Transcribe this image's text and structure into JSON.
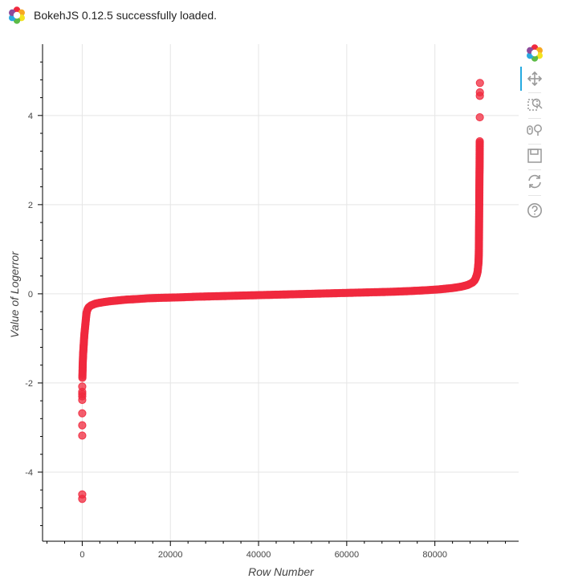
{
  "banner": {
    "message": "BokehJS 0.12.5 successfully loaded.",
    "logo_icon": "bokeh-logo-icon"
  },
  "toolbar": {
    "tools": [
      {
        "name": "bokeh-logo-icon",
        "active": false
      },
      {
        "name": "pan-icon",
        "active": true
      },
      {
        "name": "box-zoom-icon",
        "active": false
      },
      {
        "name": "wheel-zoom-icon",
        "active": false
      },
      {
        "name": "save-icon",
        "active": false
      },
      {
        "name": "reset-icon",
        "active": false
      },
      {
        "name": "help-icon",
        "active": false
      }
    ]
  },
  "chart_data": {
    "type": "scatter",
    "title": "",
    "xlabel": "Row Number",
    "ylabel": "Value of Logerror",
    "xlim": [
      -9000,
      99000
    ],
    "ylim": [
      -5.55,
      5.6
    ],
    "x_ticks": [
      0,
      20000,
      40000,
      60000,
      80000
    ],
    "x_tick_labels": [
      "0",
      "20000",
      "40000",
      "60000",
      "80000"
    ],
    "y_ticks": [
      -4,
      -2,
      0,
      2,
      4
    ],
    "y_tick_labels": [
      "-4",
      "-2",
      "0",
      "2",
      "4"
    ],
    "grid": true,
    "marker_color": "#f0293e",
    "description_of_series": "sorted logerror values, indexed by row number",
    "points": [
      [
        0,
        -4.6
      ],
      [
        0,
        -4.5
      ],
      [
        0,
        -3.18
      ],
      [
        0,
        -2.95
      ],
      [
        0,
        -2.68
      ],
      [
        0,
        -2.38
      ],
      [
        0,
        -2.3
      ],
      [
        0,
        -2.25
      ],
      [
        0,
        -2.2
      ],
      [
        0,
        -2.08
      ],
      [
        50,
        -1.82
      ],
      [
        80,
        -1.72
      ],
      [
        100,
        -1.62
      ],
      [
        120,
        -1.55
      ],
      [
        150,
        -1.48
      ],
      [
        180,
        -1.42
      ],
      [
        200,
        -1.36
      ],
      [
        250,
        -1.28
      ],
      [
        300,
        -1.2
      ],
      [
        350,
        -1.12
      ],
      [
        400,
        -1.04
      ],
      [
        450,
        -0.97
      ],
      [
        500,
        -0.9
      ],
      [
        600,
        -0.8
      ],
      [
        700,
        -0.7
      ],
      [
        800,
        -0.6
      ],
      [
        900,
        -0.5
      ],
      [
        1000,
        -0.42
      ],
      [
        1200,
        -0.35
      ],
      [
        1500,
        -0.3
      ],
      [
        2000,
        -0.26
      ],
      [
        3000,
        -0.22
      ],
      [
        4000,
        -0.2
      ],
      [
        6000,
        -0.17
      ],
      [
        8000,
        -0.15
      ],
      [
        10000,
        -0.13
      ],
      [
        12000,
        -0.12
      ],
      [
        15000,
        -0.1
      ],
      [
        18000,
        -0.09
      ],
      [
        22000,
        -0.08
      ],
      [
        26000,
        -0.065
      ],
      [
        30000,
        -0.055
      ],
      [
        34000,
        -0.045
      ],
      [
        38000,
        -0.035
      ],
      [
        42000,
        -0.025
      ],
      [
        46000,
        -0.015
      ],
      [
        50000,
        -0.005
      ],
      [
        54000,
        0.005
      ],
      [
        58000,
        0.015
      ],
      [
        62000,
        0.025
      ],
      [
        66000,
        0.035
      ],
      [
        70000,
        0.045
      ],
      [
        74000,
        0.06
      ],
      [
        78000,
        0.08
      ],
      [
        81000,
        0.1
      ],
      [
        84000,
        0.13
      ],
      [
        86000,
        0.16
      ],
      [
        87500,
        0.2
      ],
      [
        88500,
        0.25
      ],
      [
        89000,
        0.3
      ],
      [
        89300,
        0.36
      ],
      [
        89500,
        0.42
      ],
      [
        89700,
        0.5
      ],
      [
        89800,
        0.6
      ],
      [
        89900,
        0.7
      ],
      [
        89950,
        0.85
      ],
      [
        89980,
        1.0
      ],
      [
        90000,
        1.2
      ],
      [
        90020,
        1.45
      ],
      [
        90040,
        1.7
      ],
      [
        90060,
        1.95
      ],
      [
        90080,
        2.2
      ],
      [
        90100,
        2.45
      ],
      [
        90120,
        2.7
      ],
      [
        90140,
        2.85
      ],
      [
        90150,
        3.0
      ],
      [
        90160,
        3.15
      ],
      [
        90170,
        3.3
      ],
      [
        90180,
        3.42
      ],
      [
        90190,
        3.96
      ],
      [
        90200,
        4.44
      ],
      [
        90210,
        4.52
      ],
      [
        90220,
        4.73
      ]
    ]
  }
}
